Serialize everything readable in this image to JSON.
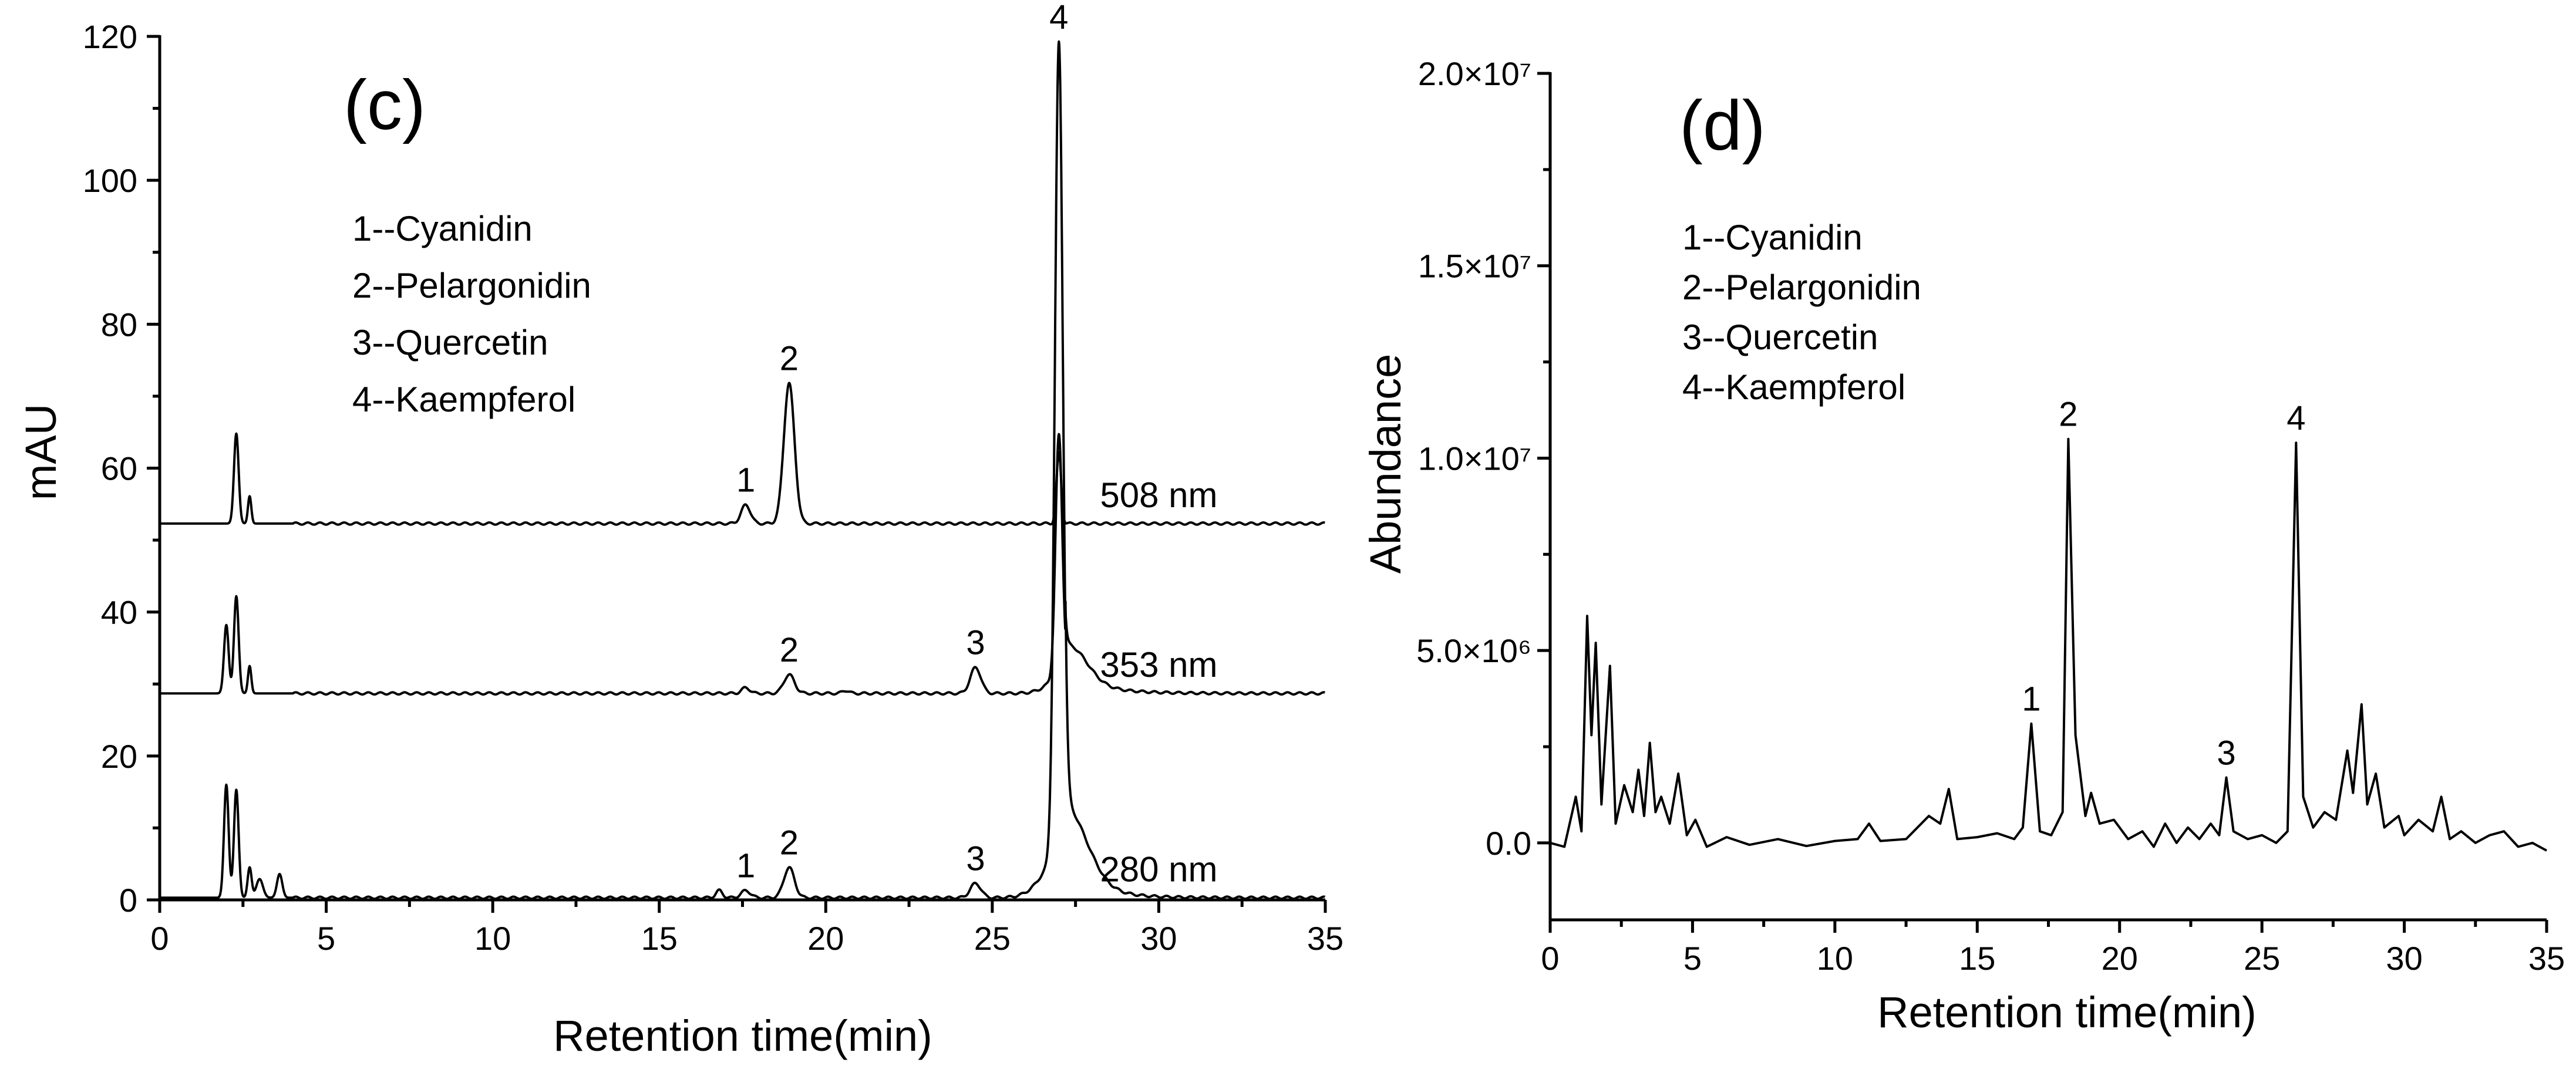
{
  "chart_data": [
    {
      "type": "line",
      "panel_label": "(c)",
      "xlabel": "Retention time(min)",
      "ylabel": "mAU",
      "xlim": [
        0,
        35
      ],
      "ylim": [
        0,
        120
      ],
      "xticks": [
        0,
        5,
        10,
        15,
        20,
        25,
        30,
        35
      ],
      "yticks": [
        0,
        20,
        40,
        60,
        80,
        100,
        120
      ],
      "xtick_labels": [
        "0",
        "5",
        "10",
        "15",
        "20",
        "25",
        "30",
        "35"
      ],
      "ytick_labels": [
        "0",
        "20",
        "40",
        "60",
        "80",
        "100",
        "120"
      ],
      "legend": [
        "1--Cyanidin",
        "2--Pelargonidin",
        "3--Quercetin",
        "4--Kaempferol"
      ],
      "legend_placement": "top-left",
      "grid": false,
      "series": [
        {
          "name": "508 nm",
          "baseline": 52.3,
          "peaks": [
            [
              2.3,
              12.5,
              0.07
            ],
            [
              2.7,
              3.8,
              0.05
            ],
            [
              17.6,
              2.6,
              0.14
            ],
            [
              18.9,
              19.5,
              0.16
            ],
            [
              27.0,
              9.8,
              0.07
            ]
          ],
          "peak_labels": [
            {
              "label": "1",
              "x": 17.6
            },
            {
              "label": "2",
              "x": 18.9
            }
          ]
        },
        {
          "name": "353 nm",
          "baseline": 28.7,
          "peaks": [
            [
              2.0,
              9.5,
              0.07
            ],
            [
              2.3,
              13.5,
              0.07
            ],
            [
              2.7,
              3.8,
              0.05
            ],
            [
              17.6,
              0.8,
              0.12
            ],
            [
              18.9,
              2.6,
              0.16
            ],
            [
              20.6,
              0.4,
              0.1
            ],
            [
              24.5,
              3.6,
              0.16
            ],
            [
              27.0,
              33.0,
              0.1
            ],
            [
              27.4,
              4.0,
              0.5
            ]
          ],
          "peak_labels": [
            {
              "label": "2",
              "x": 18.9
            },
            {
              "label": "3",
              "x": 24.5
            }
          ]
        },
        {
          "name": "280 nm",
          "baseline": 0.3,
          "peaks": [
            [
              2.0,
              15.7,
              0.07
            ],
            [
              2.3,
              15.0,
              0.07
            ],
            [
              2.7,
              4.2,
              0.06
            ],
            [
              3.0,
              2.6,
              0.1
            ],
            [
              3.6,
              3.3,
              0.08
            ],
            [
              16.8,
              1.0,
              0.1
            ],
            [
              17.6,
              1.0,
              0.14
            ],
            [
              18.9,
              4.2,
              0.16
            ],
            [
              24.5,
              2.0,
              0.16
            ],
            [
              27.0,
              111.8,
              0.12
            ],
            [
              27.3,
              8.0,
              0.6
            ]
          ],
          "peak_labels": [
            {
              "label": "1",
              "x": 17.6
            },
            {
              "label": "2",
              "x": 18.9
            },
            {
              "label": "3",
              "x": 24.5
            },
            {
              "label": "4",
              "x": 27.0
            }
          ]
        }
      ]
    },
    {
      "type": "line",
      "panel_label": "(d)",
      "xlabel": "Retention time(min)",
      "ylabel": "Abundance",
      "xlim": [
        0,
        35
      ],
      "ylim": [
        -2000000,
        20000000
      ],
      "xticks": [
        0,
        5,
        10,
        15,
        20,
        25,
        30,
        35
      ],
      "yticks": [
        0,
        5000000,
        10000000,
        15000000,
        20000000
      ],
      "xtick_labels": [
        "0",
        "5",
        "10",
        "15",
        "20",
        "25",
        "30",
        "35"
      ],
      "ytick_labels": [
        "0.0",
        "5.0×10⁶",
        "1.0×10⁷",
        "1.5×10⁷",
        "2.0×10⁷"
      ],
      "legend": [
        "1--Cyanidin",
        "2--Pelargonidin",
        "3--Quercetin",
        "4--Kaempferol"
      ],
      "legend_placement": "top-left",
      "grid": false,
      "series": [
        {
          "points": [
            [
              0,
              0
            ],
            [
              0.5,
              -100000
            ],
            [
              0.9,
              1200000
            ],
            [
              1.1,
              300000
            ],
            [
              1.3,
              5900000
            ],
            [
              1.45,
              2800000
            ],
            [
              1.6,
              5200000
            ],
            [
              1.8,
              1000000
            ],
            [
              2.1,
              4600000
            ],
            [
              2.3,
              500000
            ],
            [
              2.6,
              1500000
            ],
            [
              2.9,
              800000
            ],
            [
              3.1,
              1900000
            ],
            [
              3.3,
              700000
            ],
            [
              3.5,
              2600000
            ],
            [
              3.7,
              800000
            ],
            [
              3.9,
              1200000
            ],
            [
              4.2,
              500000
            ],
            [
              4.5,
              1800000
            ],
            [
              4.8,
              200000
            ],
            [
              5.1,
              600000
            ],
            [
              5.5,
              -100000
            ],
            [
              6.2,
              150000
            ],
            [
              7.0,
              -50000
            ],
            [
              8.0,
              100000
            ],
            [
              9.0,
              -80000
            ],
            [
              10.0,
              50000
            ],
            [
              10.8,
              100000
            ],
            [
              11.2,
              500000
            ],
            [
              11.6,
              50000
            ],
            [
              12.5,
              100000
            ],
            [
              13.3,
              700000
            ],
            [
              13.7,
              500000
            ],
            [
              14.0,
              1400000
            ],
            [
              14.3,
              100000
            ],
            [
              15.0,
              150000
            ],
            [
              15.7,
              250000
            ],
            [
              16.3,
              100000
            ],
            [
              16.6,
              400000
            ],
            [
              16.9,
              3100000
            ],
            [
              17.2,
              300000
            ],
            [
              17.6,
              200000
            ],
            [
              18.0,
              800000
            ],
            [
              18.2,
              10500000
            ],
            [
              18.45,
              2800000
            ],
            [
              18.8,
              700000
            ],
            [
              19.0,
              1300000
            ],
            [
              19.3,
              500000
            ],
            [
              19.8,
              600000
            ],
            [
              20.3,
              100000
            ],
            [
              20.8,
              300000
            ],
            [
              21.2,
              -100000
            ],
            [
              21.6,
              500000
            ],
            [
              22.0,
              0
            ],
            [
              22.4,
              400000
            ],
            [
              22.8,
              100000
            ],
            [
              23.2,
              500000
            ],
            [
              23.5,
              200000
            ],
            [
              23.75,
              1700000
            ],
            [
              24.0,
              300000
            ],
            [
              24.5,
              100000
            ],
            [
              25.0,
              200000
            ],
            [
              25.5,
              0
            ],
            [
              25.9,
              300000
            ],
            [
              26.2,
              10400000
            ],
            [
              26.45,
              1200000
            ],
            [
              26.8,
              400000
            ],
            [
              27.2,
              800000
            ],
            [
              27.6,
              600000
            ],
            [
              28.0,
              2400000
            ],
            [
              28.2,
              1300000
            ],
            [
              28.5,
              3600000
            ],
            [
              28.7,
              1000000
            ],
            [
              29.0,
              1800000
            ],
            [
              29.3,
              400000
            ],
            [
              29.8,
              700000
            ],
            [
              30.0,
              200000
            ],
            [
              30.5,
              600000
            ],
            [
              31.0,
              300000
            ],
            [
              31.3,
              1200000
            ],
            [
              31.6,
              100000
            ],
            [
              32.0,
              300000
            ],
            [
              32.5,
              0
            ],
            [
              33.0,
              200000
            ],
            [
              33.5,
              300000
            ],
            [
              34.0,
              -100000
            ],
            [
              34.5,
              0
            ],
            [
              35.0,
              -200000
            ]
          ],
          "peak_labels": [
            {
              "label": "1",
              "x": 16.9,
              "y": 3100000
            },
            {
              "label": "2",
              "x": 18.2,
              "y": 10500000
            },
            {
              "label": "3",
              "x": 23.75,
              "y": 1700000
            },
            {
              "label": "4",
              "x": 26.2,
              "y": 10400000
            }
          ]
        }
      ]
    }
  ]
}
